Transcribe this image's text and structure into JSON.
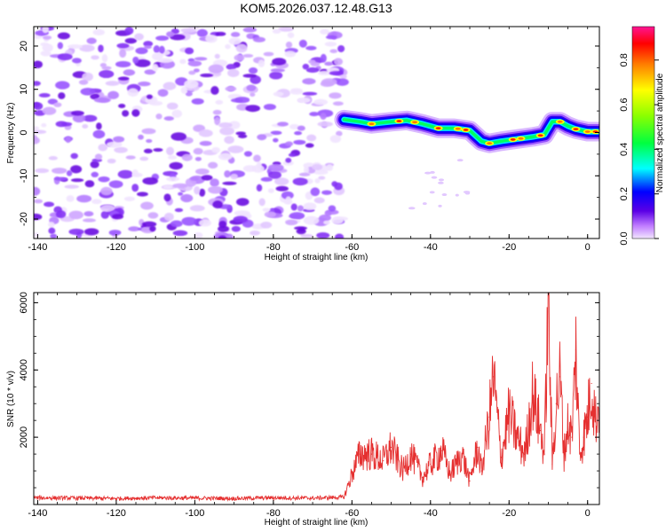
{
  "title": "KOM5.2026.037.12.48.G13",
  "chart_data": [
    {
      "type": "heatmap",
      "name": "spectrogram",
      "xlabel": "Height of straight line (km)",
      "ylabel": "Frequency (Hz)",
      "xlim": [
        -141,
        3
      ],
      "ylim": [
        -24.5,
        24.5
      ],
      "xticks": [
        -140,
        -120,
        -100,
        -80,
        -60,
        -40,
        -20,
        0
      ],
      "yticks": [
        -20,
        -10,
        0,
        10,
        20
      ],
      "noise_region": [
        -141,
        -62
      ],
      "signal_track": {
        "x": [
          -62,
          -58,
          -55,
          -50,
          -46,
          -42,
          -38,
          -34,
          -30,
          -27,
          -25,
          -22,
          -18,
          -14,
          -11,
          -9,
          -7,
          -5,
          -3,
          0,
          3
        ],
        "y": [
          3.0,
          2.5,
          2.0,
          2.5,
          2.8,
          2.0,
          1.0,
          1.0,
          0.5,
          -2.0,
          -2.5,
          -2.0,
          -1.5,
          -1.0,
          -0.5,
          2.5,
          2.5,
          1.5,
          0.8,
          0.2,
          0.2
        ]
      },
      "colorbar": {
        "label": "Normalized spectral amplitude",
        "range": [
          0.0,
          0.95
        ],
        "ticks": [
          "0.0",
          "0.2",
          "0.4",
          "0.6",
          "0.8"
        ]
      }
    },
    {
      "type": "line",
      "name": "snr",
      "xlabel": "Height of straight line (km)",
      "ylabel": "SNR (10 * v/v)",
      "xlim": [
        -141,
        3
      ],
      "ylim": [
        0,
        6300
      ],
      "xticks": [
        -140,
        -120,
        -100,
        -80,
        -60,
        -40,
        -20,
        0
      ],
      "yticks": [
        2000,
        4000,
        6000
      ],
      "series": [
        {
          "name": "SNR",
          "color": "#e53030",
          "x": [
            -141,
            -130,
            -120,
            -110,
            -100,
            -90,
            -80,
            -70,
            -62,
            -60,
            -58,
            -55,
            -52,
            -50,
            -47,
            -45,
            -42,
            -40,
            -37,
            -35,
            -32,
            -30,
            -28,
            -27,
            -25,
            -24,
            -22,
            -20,
            -18,
            -16,
            -14,
            -12,
            -11,
            -10,
            -9,
            -8,
            -7,
            -6,
            -5,
            -4,
            -3,
            -2,
            -1,
            0,
            1,
            2,
            3
          ],
          "y": [
            200,
            190,
            180,
            200,
            190,
            180,
            200,
            190,
            220,
            900,
            1500,
            1500,
            1300,
            1700,
            1000,
            1500,
            800,
            1200,
            1600,
            900,
            1500,
            700,
            1700,
            1000,
            2600,
            3800,
            1400,
            2700,
            2000,
            1500,
            3300,
            2200,
            1500,
            6200,
            1200,
            3000,
            3800,
            1500,
            2400,
            2000,
            4600,
            1500,
            2000,
            2600,
            3600,
            2500,
            3000
          ]
        }
      ]
    }
  ]
}
